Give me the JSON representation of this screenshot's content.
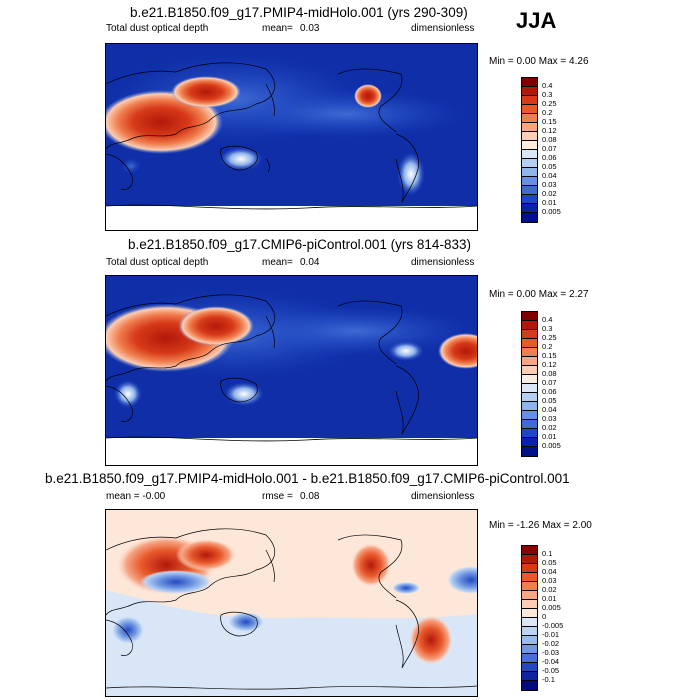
{
  "season": "JJA",
  "panels": [
    {
      "title": "b.e21.B1850.f09_g17.PMIP4-midHolo.001 (yrs 290-309)",
      "left_label": "Total dust optical depth",
      "mean_label": "mean=",
      "mean_value": "0.03",
      "units": "dimensionless",
      "minmax": "Min =   0.00 Max =   4.26"
    },
    {
      "title": "b.e21.B1850.f09_g17.CMIP6-piControl.001 (yrs 814-833)",
      "left_label": "Total dust optical depth",
      "mean_label": "mean=",
      "mean_value": "0.04",
      "units": "dimensionless",
      "minmax": "Min =   0.00 Max =   2.27"
    },
    {
      "title": "b.e21.B1850.f09_g17.PMIP4-midHolo.001 - b.e21.B1850.f09_g17.CMIP6-piControl.001",
      "left_label": "mean =  -0.00",
      "mean_label": "rmse =",
      "mean_value": "0.08",
      "units": "dimensionless",
      "minmax": "Min =  -1.26 Max =   2.00"
    }
  ],
  "colorbars": {
    "aod": {
      "labels": [
        "0.4",
        "0.3",
        "0.25",
        "0.2",
        "0.15",
        "0.12",
        "0.08",
        "0.07",
        "0.06",
        "0.05",
        "0.04",
        "0.03",
        "0.02",
        "0.01",
        "0.005"
      ],
      "colors": [
        "#7f0000",
        "#b2180a",
        "#d73a18",
        "#e85a2c",
        "#f07f4f",
        "#f6a585",
        "#fbcdb4",
        "#fcebdf",
        "#dbe7f7",
        "#b6cff1",
        "#8fb3ea",
        "#6690e0",
        "#3f6bd4",
        "#1c46c4",
        "#0822a8",
        "#000f8a"
      ]
    },
    "diff": {
      "labels": [
        "0.1",
        "0.05",
        "0.04",
        "0.03",
        "0.02",
        "0.01",
        "0.005",
        "0",
        "-0.005",
        "-0.01",
        "-0.02",
        "-0.03",
        "-0.04",
        "-0.05",
        "-0.1"
      ],
      "colors": [
        "#8b0000",
        "#b2180a",
        "#d73a18",
        "#e85a2c",
        "#f07f4f",
        "#f6a585",
        "#fbcdb4",
        "#fde7d8",
        "#d9e6f7",
        "#bcd3f2",
        "#98bbec",
        "#6f97e2",
        "#4870d5",
        "#2448c2",
        "#0f22a0",
        "#000a7a"
      ]
    }
  }
}
